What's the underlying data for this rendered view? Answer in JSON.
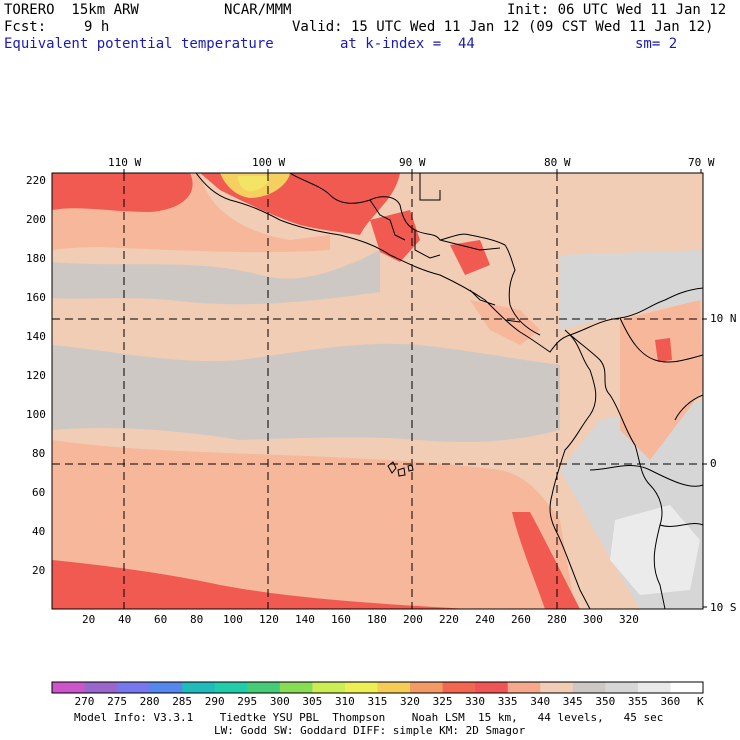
{
  "header": {
    "model": "TORERO  15km ARW",
    "org": "NCAR/MMM",
    "init": "Init: 06 UTC Wed 11 Jan 12",
    "fcst_label": "Fcst:",
    "fcst_value": "9 h",
    "valid": "Valid: 15 UTC Wed 11 Jan 12 (09 CST Wed 11 Jan 12)",
    "field": "Equivalent potential temperature",
    "level": "at k-index =  44",
    "smooth": "sm= 2"
  },
  "axes": {
    "top_lon_labels": [
      "110 W",
      "100 W",
      "90 W",
      "80 W",
      "70 W"
    ],
    "left_y_labels": [
      "220",
      "200",
      "180",
      "160",
      "140",
      "120",
      "100",
      "80",
      "60",
      "40",
      "20"
    ],
    "bottom_x_labels": [
      "20",
      "40",
      "60",
      "80",
      "100",
      "120",
      "140",
      "160",
      "180",
      "200",
      "220",
      "240",
      "260",
      "280",
      "300",
      "320"
    ],
    "right_lat_labels": [
      "10 N",
      "0",
      "10 S"
    ]
  },
  "colorbar": {
    "labels": [
      "270",
      "275",
      "280",
      "285",
      "290",
      "295",
      "300",
      "305",
      "310",
      "315",
      "320",
      "325",
      "330",
      "335",
      "340",
      "345",
      "350",
      "355",
      "360"
    ],
    "unit": "K",
    "colors": [
      "#cc55cc",
      "#9966cc",
      "#7777ee",
      "#5588ee",
      "#22bbbb",
      "#22ccaa",
      "#44cc77",
      "#88dd55",
      "#ccee55",
      "#eeee55",
      "#f6cc55",
      "#f49a66",
      "#f36650",
      "#f05555",
      "#f7a78c",
      "#f0cdb4",
      "#cdc8c4",
      "#d6d6d6",
      "#e9e9e9",
      "#ffffff"
    ]
  },
  "footer": {
    "line1": "Model Info: V3.3.1    Tiedtke YSU PBL  Thompson    Noah LSM  15 km,   44 levels,   45 sec",
    "line2": "LW: Godd SW: Goddard DIFF: simple KM: 2D Smagor"
  },
  "map_colors": {
    "c340": "#f6b79b",
    "c345": "#f0cdb4",
    "c350": "#cdc8c4",
    "c355": "#d6d6d6",
    "c360": "#ebebeb",
    "c335": "#f05a50",
    "c330": "#ea6a58",
    "c320": "#f5d060",
    "c315": "#f4e466",
    "coast": "#000000"
  }
}
